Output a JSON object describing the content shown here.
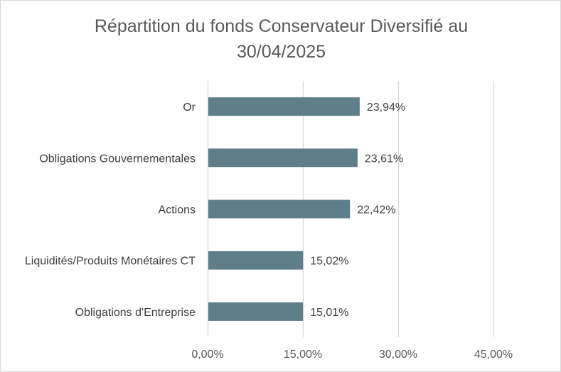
{
  "chart_data": {
    "type": "bar",
    "orientation": "horizontal",
    "title_line1": "Répartition du fonds Conservateur Diversifié au",
    "title_line2": "30/04/2025",
    "categories": [
      "Or",
      "Obligations Gouvernementales",
      "Actions",
      "Liquidités/Produits Monétaires CT",
      "Obligations d'Entreprise"
    ],
    "values": [
      23.94,
      23.61,
      22.42,
      15.02,
      15.01
    ],
    "value_labels": [
      "23,94%",
      "23,61%",
      "22,42%",
      "15,02%",
      "15,01%"
    ],
    "xlim": [
      0,
      45
    ],
    "xticks": [
      0,
      15,
      30,
      45
    ],
    "xtick_labels": [
      "0,00%",
      "15,00%",
      "30,00%",
      "45,00%"
    ],
    "grid": true,
    "legend": false,
    "colors": {
      "bar": "#5e7e89",
      "grid": "#d9d9d9",
      "text": "#404040"
    }
  }
}
